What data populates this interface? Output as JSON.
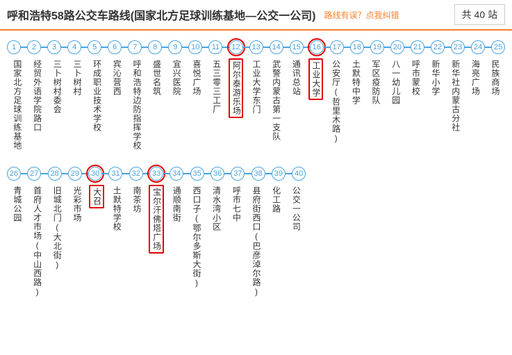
{
  "header": {
    "title": "呼和浩特58路公交车路线(国家北方足球训练基地—公交一公司)",
    "feedback": "路线有误？点我纠错",
    "count_prefix": "共 ",
    "count_value": "40",
    "count_suffix": " 站"
  },
  "colors": {
    "node_border": "#4aa3df",
    "node_text": "#4aa3df",
    "connector": "#4aa3df",
    "highlight": "#e60000",
    "divider": "#ff7f27"
  },
  "stops": [
    {
      "n": 1,
      "name": "国家北方足球训练基地"
    },
    {
      "n": 2,
      "name": "经贸外语学院路口"
    },
    {
      "n": 3,
      "name": "三卜树村委会"
    },
    {
      "n": 4,
      "name": "三卜树村"
    },
    {
      "n": 5,
      "name": "环成职业技术学校"
    },
    {
      "n": 6,
      "name": "宾沁营西"
    },
    {
      "n": 7,
      "name": "呼和浩特边防指挥学校"
    },
    {
      "n": 8,
      "name": "盛世名筑"
    },
    {
      "n": 9,
      "name": "宜兴医院"
    },
    {
      "n": 10,
      "name": "喜悦广场"
    },
    {
      "n": 11,
      "name": "五三零三工厂"
    },
    {
      "n": 12,
      "name": "阿尔泰游乐场",
      "hl": true
    },
    {
      "n": 13,
      "name": "工业大学东门"
    },
    {
      "n": 14,
      "name": "武警内蒙古第一支队"
    },
    {
      "n": 15,
      "name": "通讯总站"
    },
    {
      "n": 16,
      "name": "工业大学",
      "hl": true
    },
    {
      "n": 17,
      "name": "公安厅(哲里木路)"
    },
    {
      "n": 18,
      "name": "土默特中学"
    },
    {
      "n": 19,
      "name": "军区疫防队"
    },
    {
      "n": 20,
      "name": "八一幼儿园"
    },
    {
      "n": 21,
      "name": "呼市蒙校"
    },
    {
      "n": 22,
      "name": "新华小学"
    },
    {
      "n": 23,
      "name": "新华社内蒙古分社"
    },
    {
      "n": 24,
      "name": "海亮广场"
    },
    {
      "n": 25,
      "name": "民族商场"
    },
    {
      "n": 26,
      "name": "青城公园"
    },
    {
      "n": 27,
      "name": "首府人才市场(中山西路)"
    },
    {
      "n": 28,
      "name": "旧城北门(大北街)"
    },
    {
      "n": 29,
      "name": "光彩市场"
    },
    {
      "n": 30,
      "name": "大召",
      "hl": true
    },
    {
      "n": 31,
      "name": "土默特学校"
    },
    {
      "n": 32,
      "name": "南茶坊"
    },
    {
      "n": 33,
      "name": "宝尔汗佛塔广场",
      "hl": true
    },
    {
      "n": 34,
      "name": "通顺南街"
    },
    {
      "n": 35,
      "name": "西口子(鄂尔多斯大街)"
    },
    {
      "n": 36,
      "name": "清水湾小区"
    },
    {
      "n": 37,
      "name": "呼市七中"
    },
    {
      "n": 38,
      "name": "县府街西口(巴彦淖尔路)"
    },
    {
      "n": 39,
      "name": "化工路"
    },
    {
      "n": 40,
      "name": "公交一公司"
    }
  ],
  "per_row": 25
}
